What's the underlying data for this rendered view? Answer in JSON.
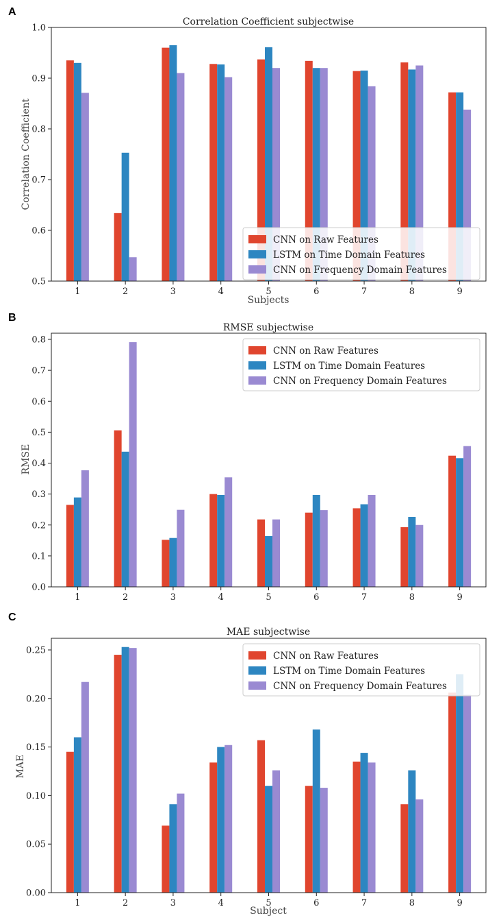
{
  "colors": {
    "raw": "#e0452e",
    "time": "#2d86c1",
    "freq": "#9a8ad2"
  },
  "chart_data": [
    {
      "panel": "A",
      "type": "bar",
      "title": "Correlation Coefficient subjectwise",
      "xlabel": "Subjects",
      "ylabel": "Correlation Coefficient",
      "ylim": [
        0.5,
        1.0
      ],
      "yticks": [
        "0.5",
        "0.6",
        "0.7",
        "0.8",
        "0.9",
        "1.0"
      ],
      "yticks_values": [
        0.5,
        0.6,
        0.7,
        0.8,
        0.9,
        1.0
      ],
      "categories": [
        "1",
        "2",
        "3",
        "4",
        "5",
        "6",
        "7",
        "8",
        "9"
      ],
      "legend_position": "lower-right",
      "series": [
        {
          "key": "raw",
          "name": "CNN on Raw Features",
          "values": [
            0.935,
            0.634,
            0.96,
            0.928,
            0.937,
            0.934,
            0.914,
            0.931,
            0.872
          ]
        },
        {
          "key": "time",
          "name": "LSTM on Time Domain Features",
          "values": [
            0.93,
            0.753,
            0.965,
            0.927,
            0.961,
            0.92,
            0.915,
            0.917,
            0.872
          ]
        },
        {
          "key": "freq",
          "name": "CNN on Frequency Domain Features",
          "values": [
            0.871,
            0.547,
            0.91,
            0.902,
            0.92,
            0.92,
            0.884,
            0.925,
            0.838
          ]
        }
      ]
    },
    {
      "panel": "B",
      "type": "bar",
      "title": "RMSE subjectwise",
      "xlabel": "",
      "ylabel": "RMSE",
      "ylim": [
        0.0,
        0.82
      ],
      "yticks": [
        "0.0",
        "0.1",
        "0.2",
        "0.3",
        "0.4",
        "0.5",
        "0.6",
        "0.7",
        "0.8"
      ],
      "yticks_values": [
        0.0,
        0.1,
        0.2,
        0.3,
        0.4,
        0.5,
        0.6,
        0.7,
        0.8
      ],
      "categories": [
        "1",
        "2",
        "3",
        "4",
        "5",
        "6",
        "7",
        "8",
        "9"
      ],
      "legend_position": "top-right",
      "series": [
        {
          "key": "raw",
          "name": "CNN on Raw Features",
          "values": [
            0.265,
            0.506,
            0.152,
            0.3,
            0.218,
            0.24,
            0.254,
            0.193,
            0.424
          ]
        },
        {
          "key": "time",
          "name": "LSTM on Time Domain Features",
          "values": [
            0.289,
            0.437,
            0.158,
            0.297,
            0.164,
            0.297,
            0.267,
            0.226,
            0.416
          ]
        },
        {
          "key": "freq",
          "name": "CNN on Frequency Domain Features",
          "values": [
            0.377,
            0.791,
            0.249,
            0.354,
            0.218,
            0.248,
            0.297,
            0.2,
            0.455
          ]
        }
      ]
    },
    {
      "panel": "C",
      "type": "bar",
      "title": "MAE subjectwise",
      "xlabel": "Subject",
      "ylabel": "MAE",
      "ylim": [
        0.0,
        0.262
      ],
      "yticks": [
        "0.00",
        "0.05",
        "0.10",
        "0.15",
        "0.20",
        "0.25"
      ],
      "yticks_values": [
        0.0,
        0.05,
        0.1,
        0.15,
        0.2,
        0.25
      ],
      "categories": [
        "1",
        "2",
        "3",
        "4",
        "5",
        "6",
        "7",
        "8",
        "9"
      ],
      "legend_position": "top-right",
      "series": [
        {
          "key": "raw",
          "name": "CNN on Raw Features",
          "values": [
            0.145,
            0.245,
            0.069,
            0.134,
            0.157,
            0.11,
            0.135,
            0.091,
            0.206
          ]
        },
        {
          "key": "time",
          "name": "LSTM on Time Domain Features",
          "values": [
            0.16,
            0.253,
            0.091,
            0.15,
            0.11,
            0.168,
            0.144,
            0.126,
            0.225
          ]
        },
        {
          "key": "freq",
          "name": "CNN on Frequency Domain Features",
          "values": [
            0.217,
            0.252,
            0.102,
            0.152,
            0.126,
            0.108,
            0.134,
            0.096,
            0.204
          ]
        }
      ]
    }
  ]
}
